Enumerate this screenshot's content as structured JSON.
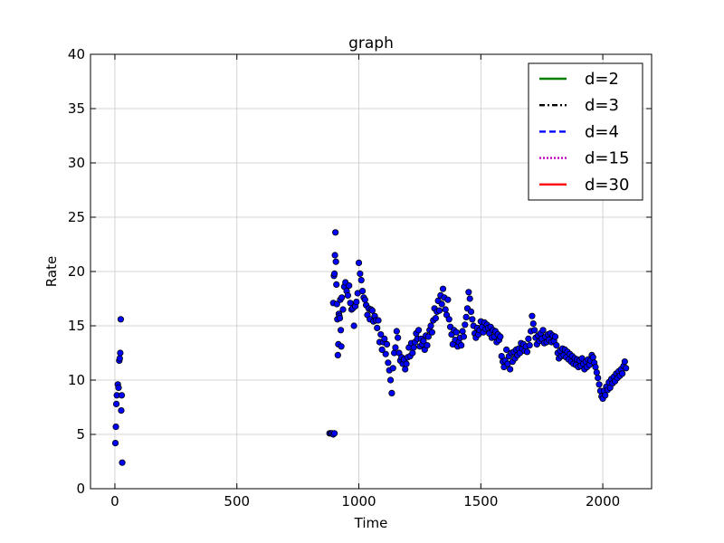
{
  "chart_data": {
    "type": "scatter",
    "title": "graph",
    "xlabel": "Time",
    "ylabel": "Rate",
    "xlim": [
      -100,
      2200
    ],
    "ylim": [
      0,
      40
    ],
    "xticks": [
      0,
      500,
      1000,
      1500,
      2000
    ],
    "yticks": [
      0,
      5,
      10,
      15,
      20,
      25,
      30,
      35,
      40
    ],
    "grid": true,
    "legend_position": "top-right",
    "legend": [
      {
        "label": "d=2",
        "color": "#008000",
        "style": "solid"
      },
      {
        "label": "d=3",
        "color": "#000000",
        "style": "dashdot"
      },
      {
        "label": "d=4",
        "color": "#0000ff",
        "style": "dashed"
      },
      {
        "label": "d=15",
        "color": "#bf00bf",
        "style": "dotted"
      },
      {
        "label": "d=30",
        "color": "#ff0000",
        "style": "solid"
      }
    ],
    "marker_color": "#0000ff",
    "marker_edge": "#000000",
    "points": [
      [
        2,
        4.2
      ],
      [
        4,
        5.7
      ],
      [
        6,
        7.8
      ],
      [
        8,
        8.6
      ],
      [
        12,
        9.6
      ],
      [
        15,
        9.3
      ],
      [
        18,
        11.8
      ],
      [
        20,
        12.0
      ],
      [
        22,
        12.5
      ],
      [
        24,
        15.6
      ],
      [
        26,
        7.2
      ],
      [
        28,
        8.6
      ],
      [
        30,
        2.4
      ],
      [
        880,
        5.1
      ],
      [
        885,
        5.1
      ],
      [
        890,
        5.1
      ],
      [
        895,
        5.0
      ],
      [
        900,
        5.1
      ],
      [
        895,
        17.1
      ],
      [
        898,
        19.6
      ],
      [
        900,
        19.8
      ],
      [
        902,
        21.5
      ],
      [
        904,
        23.6
      ],
      [
        906,
        20.9
      ],
      [
        908,
        18.8
      ],
      [
        910,
        17.0
      ],
      [
        912,
        15.6
      ],
      [
        914,
        12.3
      ],
      [
        916,
        13.3
      ],
      [
        918,
        16.1
      ],
      [
        920,
        15.9
      ],
      [
        922,
        15.7
      ],
      [
        924,
        17.4
      ],
      [
        926,
        14.6
      ],
      [
        928,
        13.1
      ],
      [
        930,
        17.6
      ],
      [
        935,
        16.5
      ],
      [
        940,
        18.6
      ],
      [
        945,
        19.0
      ],
      [
        950,
        18.2
      ],
      [
        955,
        17.8
      ],
      [
        960,
        18.7
      ],
      [
        965,
        17.1
      ],
      [
        970,
        16.5
      ],
      [
        975,
        16.6
      ],
      [
        980,
        15.0
      ],
      [
        985,
        16.8
      ],
      [
        990,
        17.2
      ],
      [
        995,
        18.0
      ],
      [
        1000,
        20.8
      ],
      [
        1005,
        19.8
      ],
      [
        1010,
        19.2
      ],
      [
        1015,
        18.2
      ],
      [
        1020,
        17.6
      ],
      [
        1025,
        17.4
      ],
      [
        1030,
        16.9
      ],
      [
        1035,
        16.0
      ],
      [
        1040,
        16.6
      ],
      [
        1045,
        15.6
      ],
      [
        1050,
        16.5
      ],
      [
        1055,
        16.4
      ],
      [
        1060,
        15.4
      ],
      [
        1065,
        15.9
      ],
      [
        1070,
        15.5
      ],
      [
        1075,
        14.8
      ],
      [
        1080,
        15.5
      ],
      [
        1085,
        13.5
      ],
      [
        1090,
        14.2
      ],
      [
        1095,
        12.8
      ],
      [
        1100,
        13.5
      ],
      [
        1105,
        13.8
      ],
      [
        1110,
        12.4
      ],
      [
        1115,
        13.3
      ],
      [
        1120,
        11.6
      ],
      [
        1125,
        10.9
      ],
      [
        1130,
        10.0
      ],
      [
        1135,
        8.8
      ],
      [
        1140,
        11.1
      ],
      [
        1145,
        12.5
      ],
      [
        1150,
        13.0
      ],
      [
        1155,
        14.5
      ],
      [
        1160,
        13.9
      ],
      [
        1165,
        12.5
      ],
      [
        1170,
        11.8
      ],
      [
        1175,
        12.1
      ],
      [
        1180,
        11.5
      ],
      [
        1185,
        11.9
      ],
      [
        1190,
        11.0
      ],
      [
        1195,
        11.5
      ],
      [
        1200,
        12.1
      ],
      [
        1205,
        13.0
      ],
      [
        1210,
        12.2
      ],
      [
        1215,
        13.4
      ],
      [
        1220,
        12.5
      ],
      [
        1225,
        13.0
      ],
      [
        1230,
        13.5
      ],
      [
        1235,
        14.3
      ],
      [
        1240,
        13.8
      ],
      [
        1245,
        14.6
      ],
      [
        1250,
        13.1
      ],
      [
        1255,
        13.8
      ],
      [
        1260,
        13.3
      ],
      [
        1265,
        13.6
      ],
      [
        1270,
        12.8
      ],
      [
        1275,
        14.1
      ],
      [
        1280,
        13.2
      ],
      [
        1285,
        14.0
      ],
      [
        1290,
        14.6
      ],
      [
        1295,
        15.0
      ],
      [
        1300,
        14.4
      ],
      [
        1305,
        15.5
      ],
      [
        1310,
        16.6
      ],
      [
        1315,
        15.7
      ],
      [
        1320,
        16.3
      ],
      [
        1325,
        17.3
      ],
      [
        1330,
        16.4
      ],
      [
        1335,
        17.8
      ],
      [
        1340,
        17.0
      ],
      [
        1345,
        18.4
      ],
      [
        1350,
        17.6
      ],
      [
        1355,
        16.5
      ],
      [
        1360,
        16.0
      ],
      [
        1365,
        17.4
      ],
      [
        1370,
        15.6
      ],
      [
        1375,
        14.9
      ],
      [
        1380,
        14.2
      ],
      [
        1385,
        13.3
      ],
      [
        1390,
        14.6
      ],
      [
        1395,
        13.7
      ],
      [
        1400,
        14.4
      ],
      [
        1405,
        13.1
      ],
      [
        1410,
        13.5
      ],
      [
        1415,
        13.9
      ],
      [
        1420,
        13.2
      ],
      [
        1425,
        14.5
      ],
      [
        1430,
        14.0
      ],
      [
        1435,
        15.1
      ],
      [
        1440,
        15.8
      ],
      [
        1445,
        16.6
      ],
      [
        1450,
        18.1
      ],
      [
        1455,
        17.5
      ],
      [
        1460,
        16.3
      ],
      [
        1465,
        15.6
      ],
      [
        1470,
        15.0
      ],
      [
        1475,
        14.3
      ],
      [
        1480,
        13.9
      ],
      [
        1485,
        14.8
      ],
      [
        1490,
        14.2
      ],
      [
        1495,
        14.6
      ],
      [
        1500,
        15.4
      ],
      [
        1505,
        14.9
      ],
      [
        1510,
        14.4
      ],
      [
        1515,
        15.3
      ],
      [
        1520,
        14.7
      ],
      [
        1525,
        15.1
      ],
      [
        1530,
        14.8
      ],
      [
        1535,
        14.3
      ],
      [
        1540,
        14.9
      ],
      [
        1545,
        13.9
      ],
      [
        1550,
        14.6
      ],
      [
        1555,
        14.0
      ],
      [
        1560,
        14.5
      ],
      [
        1565,
        13.5
      ],
      [
        1570,
        14.2
      ],
      [
        1575,
        13.7
      ],
      [
        1580,
        14.0
      ],
      [
        1585,
        12.2
      ],
      [
        1590,
        11.7
      ],
      [
        1595,
        11.2
      ],
      [
        1600,
        11.8
      ],
      [
        1605,
        12.8
      ],
      [
        1610,
        11.5
      ],
      [
        1615,
        12.2
      ],
      [
        1620,
        11.0
      ],
      [
        1625,
        12.5
      ],
      [
        1630,
        11.7
      ],
      [
        1635,
        12.6
      ],
      [
        1640,
        12.0
      ],
      [
        1645,
        12.8
      ],
      [
        1650,
        12.3
      ],
      [
        1655,
        12.9
      ],
      [
        1660,
        12.5
      ],
      [
        1665,
        13.4
      ],
      [
        1670,
        12.9
      ],
      [
        1675,
        13.3
      ],
      [
        1680,
        12.7
      ],
      [
        1685,
        13.1
      ],
      [
        1690,
        12.6
      ],
      [
        1695,
        13.8
      ],
      [
        1700,
        13.2
      ],
      [
        1705,
        14.5
      ],
      [
        1710,
        15.9
      ],
      [
        1715,
        15.2
      ],
      [
        1720,
        14.6
      ],
      [
        1725,
        13.9
      ],
      [
        1730,
        13.3
      ],
      [
        1735,
        14.1
      ],
      [
        1740,
        13.6
      ],
      [
        1745,
        14.3
      ],
      [
        1750,
        13.8
      ],
      [
        1755,
        14.6
      ],
      [
        1760,
        13.4
      ],
      [
        1765,
        14.0
      ],
      [
        1770,
        13.5
      ],
      [
        1775,
        14.2
      ],
      [
        1780,
        13.7
      ],
      [
        1785,
        14.3
      ],
      [
        1790,
        13.5
      ],
      [
        1795,
        14.1
      ],
      [
        1800,
        13.6
      ],
      [
        1805,
        14.0
      ],
      [
        1810,
        13.2
      ],
      [
        1815,
        12.5
      ],
      [
        1820,
        12.0
      ],
      [
        1825,
        12.7
      ],
      [
        1830,
        12.2
      ],
      [
        1835,
        12.9
      ],
      [
        1840,
        12.3
      ],
      [
        1845,
        12.8
      ],
      [
        1850,
        12.1
      ],
      [
        1855,
        12.6
      ],
      [
        1860,
        11.9
      ],
      [
        1865,
        12.4
      ],
      [
        1870,
        11.7
      ],
      [
        1875,
        12.2
      ],
      [
        1880,
        11.5
      ],
      [
        1885,
        12.0
      ],
      [
        1890,
        11.4
      ],
      [
        1895,
        11.9
      ],
      [
        1900,
        11.2
      ],
      [
        1905,
        11.8
      ],
      [
        1910,
        11.3
      ],
      [
        1915,
        12.0
      ],
      [
        1920,
        11.5
      ],
      [
        1925,
        11.0
      ],
      [
        1930,
        11.7
      ],
      [
        1935,
        11.2
      ],
      [
        1940,
        11.9
      ],
      [
        1945,
        11.4
      ],
      [
        1950,
        11.8
      ],
      [
        1955,
        12.3
      ],
      [
        1960,
        12.1
      ],
      [
        1965,
        11.6
      ],
      [
        1970,
        11.2
      ],
      [
        1975,
        10.7
      ],
      [
        1980,
        10.2
      ],
      [
        1985,
        9.6
      ],
      [
        1990,
        9.0
      ],
      [
        1995,
        8.5
      ],
      [
        2000,
        8.3
      ],
      [
        2005,
        9.0
      ],
      [
        2010,
        8.6
      ],
      [
        2015,
        9.4
      ],
      [
        2020,
        9.1
      ],
      [
        2025,
        9.8
      ],
      [
        2030,
        9.3
      ],
      [
        2035,
        10.1
      ],
      [
        2040,
        9.7
      ],
      [
        2045,
        10.3
      ],
      [
        2050,
        9.9
      ],
      [
        2055,
        10.6
      ],
      [
        2060,
        10.2
      ],
      [
        2065,
        10.8
      ],
      [
        2070,
        10.4
      ],
      [
        2075,
        11.0
      ],
      [
        2080,
        10.6
      ],
      [
        2085,
        11.3
      ],
      [
        2090,
        11.7
      ],
      [
        2095,
        11.1
      ]
    ]
  }
}
